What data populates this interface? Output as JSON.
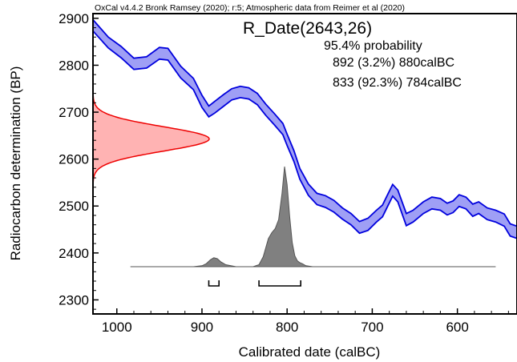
{
  "chart_data": {
    "type": "area",
    "header": "OxCal v4.4.2 Bronk Ramsey (2020); r:5; Atmospheric data from Reimer et al (2020)",
    "title": "R_Date(2643,26)",
    "probability_label": "95.4% probability",
    "ranges": [
      {
        "label": "892 (3.2%) 880calBC",
        "from": 892,
        "to": 880
      },
      {
        "label": "833 (92.3%) 784calBC",
        "from": 833,
        "to": 784
      }
    ],
    "xlabel": "Calibrated date (calBC)",
    "ylabel": "Radiocarbon determination (BP)",
    "xlim": [
      1028,
      530
    ],
    "ylim": [
      2270,
      2910
    ],
    "xticks": [
      1000,
      900,
      800,
      700,
      600
    ],
    "yticks": [
      2300,
      2400,
      2500,
      2600,
      2700,
      2800,
      2900
    ],
    "grid": false,
    "colors": {
      "curve": "#0000dd",
      "curve_fill": "#9f9ff5",
      "radiocarbon": "#ee0000",
      "radiocarbon_fill": "#ffb3b3",
      "posterior": "#555555",
      "posterior_fill": "#808080"
    },
    "calibration_curve": {
      "x": [
        1028,
        1010,
        995,
        980,
        965,
        950,
        940,
        925,
        910,
        900,
        892,
        885,
        875,
        865,
        855,
        845,
        835,
        825,
        815,
        805,
        800,
        792,
        785,
        775,
        765,
        755,
        745,
        735,
        725,
        715,
        705,
        695,
        688,
        682,
        676,
        670,
        660,
        652,
        640,
        630,
        620,
        612,
        605,
        598,
        590,
        582,
        575,
        565,
        555,
        545,
        538,
        530
      ],
      "upper": [
        2897,
        2860,
        2840,
        2815,
        2818,
        2838,
        2836,
        2798,
        2772,
        2736,
        2713,
        2723,
        2737,
        2750,
        2755,
        2752,
        2740,
        2717,
        2697,
        2676,
        2653,
        2618,
        2580,
        2547,
        2527,
        2522,
        2512,
        2496,
        2484,
        2467,
        2474,
        2491,
        2502,
        2524,
        2546,
        2534,
        2484,
        2491,
        2509,
        2519,
        2516,
        2506,
        2511,
        2524,
        2519,
        2504,
        2509,
        2496,
        2491,
        2483,
        2462,
        2457
      ],
      "lower": [
        2873,
        2837,
        2816,
        2791,
        2794,
        2813,
        2811,
        2773,
        2748,
        2710,
        2690,
        2698,
        2712,
        2726,
        2731,
        2728,
        2716,
        2693,
        2673,
        2652,
        2629,
        2595,
        2557,
        2523,
        2503,
        2497,
        2487,
        2472,
        2460,
        2442,
        2448,
        2466,
        2477,
        2499,
        2521,
        2509,
        2458,
        2466,
        2484,
        2494,
        2491,
        2481,
        2486,
        2499,
        2494,
        2478,
        2484,
        2471,
        2466,
        2457,
        2436,
        2431
      ]
    },
    "radiocarbon_date": {
      "mean": 2643,
      "error": 26
    },
    "posterior": {
      "x": [
        984,
        910,
        900,
        895,
        890,
        886,
        882,
        878,
        872,
        860,
        840,
        833,
        828,
        822,
        818,
        814,
        810,
        806,
        803,
        800,
        797,
        794,
        791,
        788,
        785,
        782,
        778,
        770,
        555
      ],
      "density": [
        0,
        0,
        0.01,
        0.03,
        0.07,
        0.09,
        0.08,
        0.05,
        0.02,
        0,
        0,
        0.02,
        0.1,
        0.28,
        0.34,
        0.38,
        0.47,
        0.73,
        1.0,
        0.82,
        0.5,
        0.24,
        0.11,
        0.06,
        0.04,
        0.03,
        0.01,
        0,
        0
      ]
    }
  }
}
